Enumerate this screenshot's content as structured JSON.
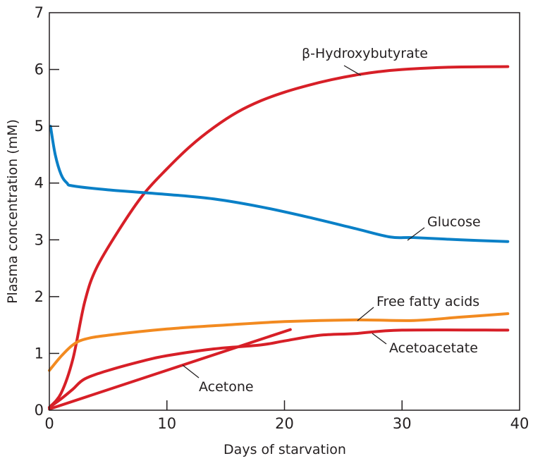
{
  "chart_data": {
    "type": "line",
    "title": "",
    "xlabel": "Days of starvation",
    "ylabel": "Plasma concentration (mM)",
    "xlim": [
      0,
      40
    ],
    "ylim": [
      0,
      7
    ],
    "xticks": [
      "0",
      "10",
      "20",
      "30",
      "40"
    ],
    "yticks": [
      "0",
      "1",
      "2",
      "3",
      "4",
      "5",
      "6",
      "7"
    ],
    "grid": false,
    "series": [
      {
        "name": "β-Hydroxybutyrate",
        "color": "#d71f27",
        "x": [
          0,
          1,
          2,
          3,
          4,
          6,
          8,
          10,
          12,
          14,
          16,
          18,
          20,
          22,
          24,
          26,
          28,
          30,
          34,
          39
        ],
        "y": [
          0.05,
          0.3,
          0.9,
          1.9,
          2.5,
          3.2,
          3.8,
          4.25,
          4.65,
          4.98,
          5.25,
          5.45,
          5.6,
          5.72,
          5.82,
          5.9,
          5.96,
          6.0,
          6.04,
          6.05
        ]
      },
      {
        "name": "Glucose",
        "color": "#0a80c7",
        "x": [
          0.1,
          0.5,
          1,
          1.5,
          2,
          5,
          10,
          14,
          18,
          22,
          26,
          29,
          31,
          35,
          39
        ],
        "y": [
          5.0,
          4.5,
          4.15,
          4.0,
          3.95,
          3.88,
          3.8,
          3.72,
          3.58,
          3.4,
          3.2,
          3.05,
          3.04,
          3.0,
          2.97
        ]
      },
      {
        "name": "Free fatty acids",
        "color": "#f28a20",
        "x": [
          0,
          1,
          2,
          3,
          5,
          10,
          15,
          20,
          26,
          31,
          35,
          39
        ],
        "y": [
          0.7,
          0.95,
          1.15,
          1.25,
          1.32,
          1.43,
          1.5,
          1.56,
          1.59,
          1.58,
          1.64,
          1.7
        ]
      },
      {
        "name": "Acetoacetate",
        "color": "#d71f27",
        "x": [
          0,
          1,
          2,
          3,
          5,
          8,
          10,
          14,
          18,
          20,
          23,
          26,
          30,
          39
        ],
        "y": [
          0.05,
          0.2,
          0.37,
          0.55,
          0.7,
          0.87,
          0.96,
          1.08,
          1.15,
          1.22,
          1.32,
          1.35,
          1.41,
          1.41
        ]
      },
      {
        "name": "Acetone",
        "color": "#d71f27",
        "x": [
          0,
          20.5
        ],
        "y": [
          0.02,
          1.42
        ]
      }
    ]
  }
}
